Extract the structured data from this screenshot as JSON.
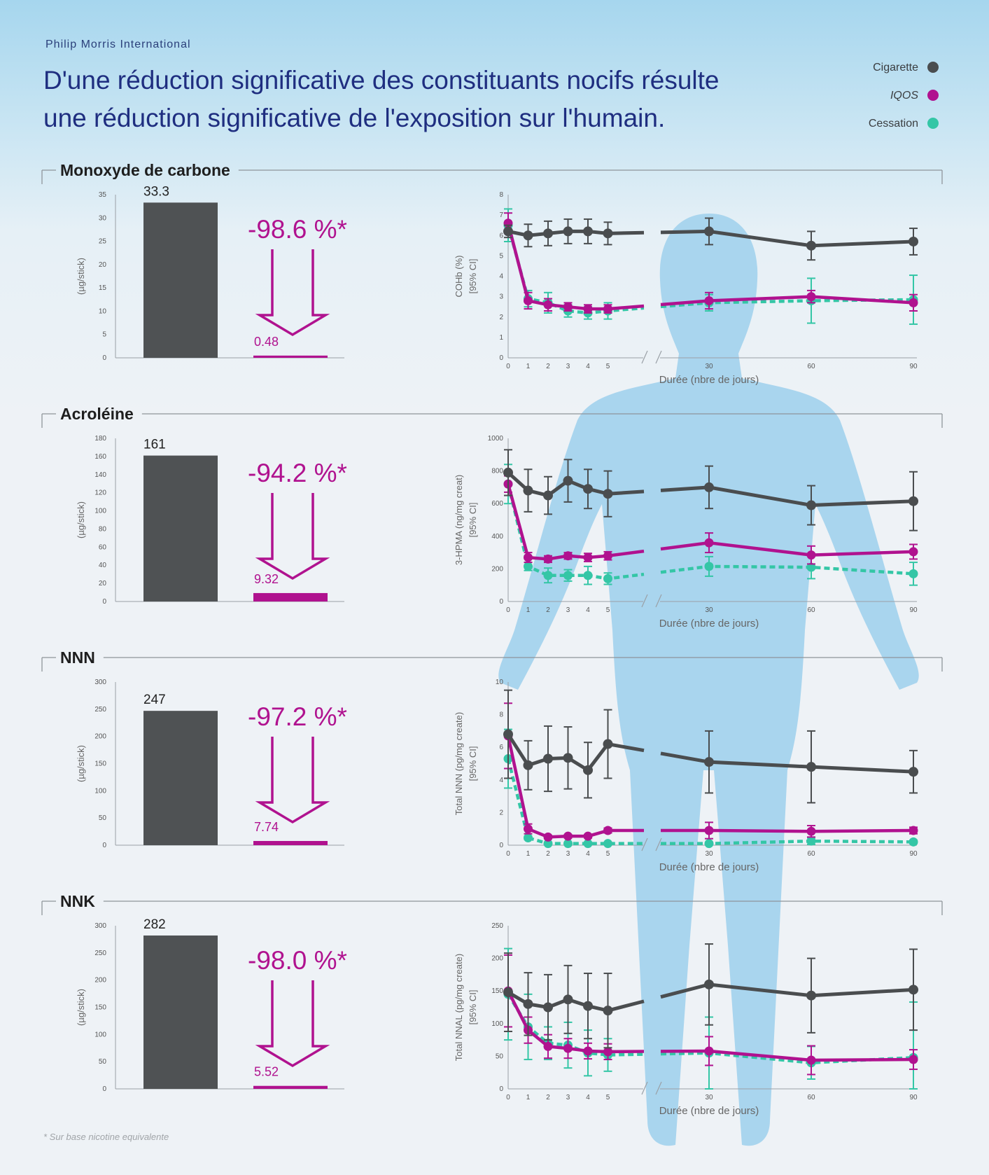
{
  "header": {
    "brand": "Philip Morris International",
    "title_line1": "D'une réduction significative des constituants nocifs résulte",
    "title_line2": "une réduction significative de l'exposition sur l'humain."
  },
  "legend": [
    {
      "label": "Cigarette",
      "color": "#4a4d4f"
    },
    {
      "label": "IQOS",
      "color": "#b0128f"
    },
    {
      "label": "Cessation",
      "color": "#34c6a6"
    }
  ],
  "colors": {
    "silhouette": "#a9d5ee",
    "axis": "#9aa0a6",
    "frame": "#8f959a"
  },
  "sections": [
    {
      "title": "Monoxyde de carbone"
    },
    {
      "title": "Acroléine"
    },
    {
      "title": "NNN"
    },
    {
      "title": "NNK"
    }
  ],
  "footnote": "* Sur base nicotine equivalente",
  "chart_data": [
    {
      "type": "bar",
      "section": "Monoxyde de carbone",
      "ylabel": "(µg/stick)",
      "ylim": [
        0,
        35
      ],
      "ytick_step": 5,
      "categories": [
        "Cigarette",
        "IQOS"
      ],
      "values": [
        33.3,
        0.48
      ],
      "value_labels": [
        "33.3",
        "0.48"
      ],
      "reduction": "-98.6 %*"
    },
    {
      "type": "line",
      "section": "Monoxyde de carbone",
      "ylabel": [
        "COHb (%)",
        "[95% CI]"
      ],
      "xlabel": "Durée (nbre de jours)",
      "ylim": [
        0,
        8
      ],
      "ytick_step": 1,
      "x": [
        0,
        1,
        2,
        3,
        4,
        5,
        30,
        60,
        90
      ],
      "x_tick_labels": [
        "0",
        "1",
        "2",
        "3",
        "4",
        "5",
        "30",
        "60",
        "90"
      ],
      "axis_break": [
        5,
        30
      ],
      "series": [
        {
          "name": "Cigarette",
          "values": [
            6.2,
            6.0,
            6.1,
            6.2,
            6.2,
            6.1,
            6.2,
            5.5,
            5.7
          ],
          "ci_half": [
            0.3,
            0.55,
            0.6,
            0.6,
            0.6,
            0.55,
            0.65,
            0.7,
            0.65
          ]
        },
        {
          "name": "IQOS",
          "values": [
            6.6,
            2.8,
            2.6,
            2.5,
            2.4,
            2.4,
            2.8,
            3.0,
            2.7
          ],
          "ci_half": [
            0.5,
            0.4,
            0.3,
            0.2,
            0.2,
            0.2,
            0.4,
            0.3,
            0.4
          ]
        },
        {
          "name": "Cessation",
          "values": [
            6.5,
            2.9,
            2.7,
            2.3,
            2.2,
            2.3,
            2.7,
            2.8,
            2.85
          ],
          "ci_half": [
            0.8,
            0.4,
            0.5,
            0.3,
            0.3,
            0.4,
            0.4,
            1.1,
            1.2
          ]
        }
      ]
    },
    {
      "type": "bar",
      "section": "Acroléine",
      "ylabel": "(µg/stick)",
      "ylim": [
        0,
        180
      ],
      "ytick_step": 20,
      "categories": [
        "Cigarette",
        "IQOS"
      ],
      "values": [
        161,
        9.32
      ],
      "value_labels": [
        "161",
        "9.32"
      ],
      "reduction": "-94.2 %*"
    },
    {
      "type": "line",
      "section": "Acroléine",
      "ylabel": [
        "3-HPMA (ng/mg creat)",
        "[95% CI]"
      ],
      "xlabel": "Durée (nbre de jours)",
      "ylim": [
        0,
        1000
      ],
      "ytick_step": 200,
      "x": [
        0,
        1,
        2,
        3,
        4,
        5,
        30,
        60,
        90
      ],
      "x_tick_labels": [
        "0",
        "1",
        "2",
        "3",
        "4",
        "5",
        "30",
        "60",
        "90"
      ],
      "axis_break": [
        5,
        30
      ],
      "series": [
        {
          "name": "Cigarette",
          "values": [
            790,
            680,
            650,
            740,
            690,
            660,
            700,
            590,
            615
          ],
          "ci_half": [
            140,
            130,
            115,
            130,
            120,
            140,
            130,
            120,
            180
          ]
        },
        {
          "name": "IQOS",
          "values": [
            720,
            270,
            260,
            280,
            270,
            280,
            360,
            285,
            305
          ],
          "ci_half": [
            50,
            30,
            20,
            20,
            25,
            25,
            60,
            55,
            45
          ]
        },
        {
          "name": "Cessation",
          "values": [
            720,
            215,
            160,
            160,
            160,
            140,
            215,
            210,
            170
          ],
          "ci_half": [
            120,
            25,
            45,
            35,
            55,
            35,
            60,
            70,
            70
          ]
        }
      ]
    },
    {
      "type": "bar",
      "section": "NNN",
      "ylabel": "(µg/stick)",
      "ylim": [
        0,
        300
      ],
      "ytick_step": 50,
      "categories": [
        "Cigarette",
        "IQOS"
      ],
      "values": [
        247,
        7.74
      ],
      "value_labels": [
        "247",
        "7.74"
      ],
      "reduction": "-97.2 %*"
    },
    {
      "type": "line",
      "section": "NNN",
      "ylabel": [
        "Total NNN (pg/mg create)",
        "[95% CI]"
      ],
      "xlabel": "Durée (nbre de jours)",
      "ylim": [
        0,
        10
      ],
      "ytick_step": 2,
      "x": [
        0,
        1,
        2,
        3,
        4,
        5,
        30,
        60,
        90
      ],
      "x_tick_labels": [
        "0",
        "1",
        "2",
        "3",
        "4",
        "5",
        "30",
        "60",
        "90"
      ],
      "axis_break": [
        5,
        30
      ],
      "series": [
        {
          "name": "Cigarette",
          "values": [
            6.8,
            4.9,
            5.3,
            5.35,
            4.6,
            6.2,
            5.1,
            4.8,
            4.5
          ],
          "ci_half": [
            2.7,
            1.5,
            2.0,
            1.9,
            1.7,
            2.1,
            1.9,
            2.2,
            1.3
          ]
        },
        {
          "name": "IQOS",
          "values": [
            6.7,
            1.0,
            0.5,
            0.55,
            0.55,
            0.9,
            0.9,
            0.85,
            0.9
          ],
          "ci_half": [
            2.0,
            0.3,
            0.1,
            0.1,
            0.1,
            0.15,
            0.5,
            0.35,
            0.2
          ]
        },
        {
          "name": "Cessation",
          "values": [
            5.3,
            0.45,
            0.1,
            0.1,
            0.1,
            0.1,
            0.1,
            0.25,
            0.2
          ],
          "ci_half": [
            1.8,
            0.1,
            0.05,
            0.05,
            0.05,
            0.05,
            0.05,
            0.2,
            0.1
          ]
        }
      ]
    },
    {
      "type": "bar",
      "section": "NNK",
      "ylabel": "(µg/stick)",
      "ylim": [
        0,
        300
      ],
      "ytick_step": 50,
      "categories": [
        "Cigarette",
        "IQOS"
      ],
      "values": [
        282,
        5.52
      ],
      "value_labels": [
        "282",
        "5.52"
      ],
      "reduction": "-98.0 %*"
    },
    {
      "type": "line",
      "section": "NNK",
      "ylabel": [
        "Total NNAL (pg/mg create)",
        "[95% CI]"
      ],
      "xlabel": "Durée (nbre de jours)",
      "ylim": [
        0,
        250
      ],
      "ytick_step": 50,
      "x": [
        0,
        1,
        2,
        3,
        4,
        5,
        30,
        60,
        90
      ],
      "x_tick_labels": [
        "0",
        "1",
        "2",
        "3",
        "4",
        "5",
        "30",
        "60",
        "90"
      ],
      "axis_break": [
        5,
        30
      ],
      "series": [
        {
          "name": "Cigarette",
          "values": [
            148,
            130,
            125,
            137,
            127,
            120,
            160,
            143,
            152
          ],
          "ci_half": [
            60,
            48,
            50,
            52,
            50,
            57,
            62,
            57,
            62
          ]
        },
        {
          "name": "IQOS",
          "values": [
            150,
            90,
            65,
            62,
            58,
            57,
            58,
            44,
            45
          ],
          "ci_half": [
            55,
            20,
            18,
            15,
            12,
            12,
            22,
            22,
            15
          ]
        },
        {
          "name": "Cessation",
          "values": [
            145,
            95,
            70,
            67,
            55,
            52,
            55,
            40,
            48
          ],
          "ci_half": [
            70,
            50,
            25,
            35,
            35,
            25,
            55,
            25,
            85
          ]
        }
      ]
    }
  ]
}
